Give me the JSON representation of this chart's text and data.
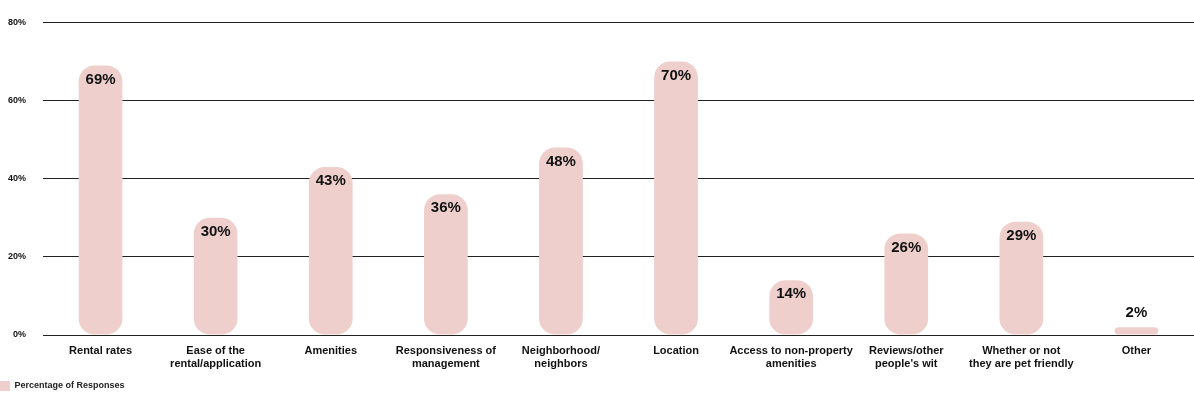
{
  "chart_data": {
    "type": "bar",
    "categories": [
      "Rental rates",
      "Ease of the\nrental/application",
      "Amenities",
      "Responsiveness of\nmanagement",
      "Neighborhood/\nneighbors",
      "Location",
      "Access to non-property\namenities",
      "Reviews/other\npeople's wit",
      "Whether or not\nthey are pet friendly",
      "Other"
    ],
    "series": [
      {
        "name": "Percentage of Responses",
        "color": "#efcfcc",
        "values": [
          69,
          30,
          43,
          36,
          48,
          70,
          14,
          26,
          29,
          2
        ],
        "value_labels": [
          "69%",
          "30%",
          "43%",
          "36%",
          "48%",
          "70%",
          "14%",
          "26%",
          "29%",
          "2%"
        ]
      }
    ],
    "ylim": [
      0,
      80
    ],
    "yticks": [
      {
        "value": 0,
        "label": "0%"
      },
      {
        "value": 20,
        "label": "20%"
      },
      {
        "value": 40,
        "label": "40%"
      },
      {
        "value": 60,
        "label": "60%"
      },
      {
        "value": 80,
        "label": "80%"
      }
    ],
    "grid": "y",
    "legend": "bottom left"
  }
}
